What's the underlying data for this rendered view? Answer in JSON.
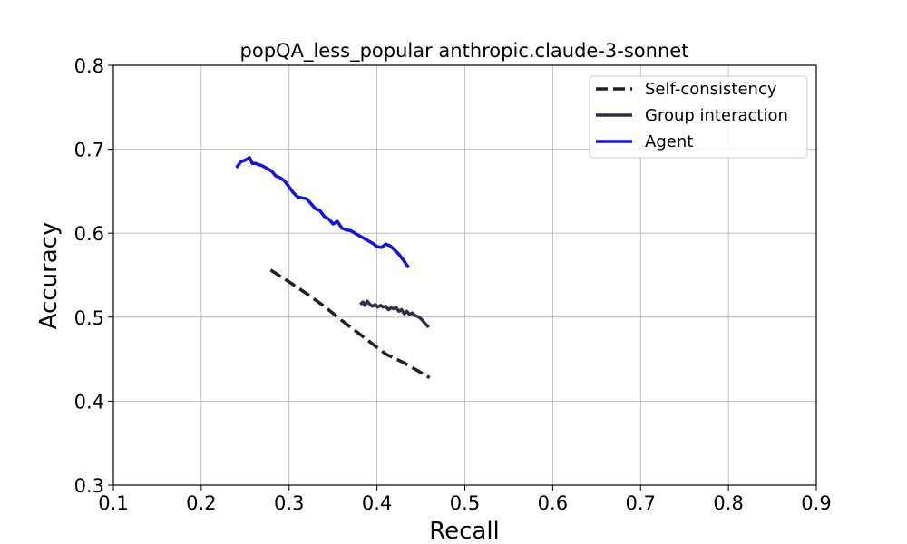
{
  "chart_data": {
    "type": "line",
    "title": "popQA_less_popular anthropic.claude-3-sonnet",
    "xlabel": "Recall",
    "ylabel": "Accuracy",
    "xlim": [
      0.1,
      0.9
    ],
    "ylim": [
      0.3,
      0.8
    ],
    "xticks": [
      0.1,
      0.2,
      0.3,
      0.4,
      0.5,
      0.6,
      0.7,
      0.8,
      0.9
    ],
    "yticks": [
      0.3,
      0.4,
      0.5,
      0.6,
      0.7,
      0.8
    ],
    "xtick_labels": [
      "0.1",
      "0.2",
      "0.3",
      "0.4",
      "0.5",
      "0.6",
      "0.7",
      "0.8",
      "0.9"
    ],
    "ytick_labels": [
      "0.3",
      "0.4",
      "0.5",
      "0.6",
      "0.7",
      "0.8"
    ],
    "grid": true,
    "legend_position": "top-right",
    "series": [
      {
        "name": "Self-consistency",
        "color": "#1f2024",
        "dash": "dashed",
        "x": [
          0.279,
          0.3,
          0.32,
          0.34,
          0.36,
          0.38,
          0.4,
          0.41,
          0.42,
          0.43,
          0.44,
          0.45,
          0.46
        ],
        "y": [
          0.556,
          0.542,
          0.528,
          0.513,
          0.496,
          0.48,
          0.464,
          0.456,
          0.451,
          0.446,
          0.44,
          0.434,
          0.428
        ]
      },
      {
        "name": "Group interaction",
        "color": "#2e3048",
        "dash": "solid",
        "x": [
          0.381,
          0.384,
          0.386,
          0.389,
          0.392,
          0.395,
          0.398,
          0.401,
          0.404,
          0.407,
          0.41,
          0.413,
          0.416,
          0.419,
          0.422,
          0.425,
          0.428,
          0.431,
          0.434,
          0.437,
          0.44,
          0.443,
          0.446,
          0.449,
          0.452,
          0.455,
          0.459
        ],
        "y": [
          0.515,
          0.518,
          0.514,
          0.519,
          0.515,
          0.513,
          0.515,
          0.512,
          0.514,
          0.512,
          0.513,
          0.509,
          0.511,
          0.51,
          0.511,
          0.507,
          0.509,
          0.504,
          0.507,
          0.503,
          0.505,
          0.502,
          0.501,
          0.499,
          0.496,
          0.492,
          0.488
        ]
      },
      {
        "name": "Agent",
        "color": "#1212e6",
        "dash": "solid",
        "x": [
          0.24,
          0.245,
          0.25,
          0.255,
          0.258,
          0.262,
          0.27,
          0.275,
          0.28,
          0.285,
          0.29,
          0.295,
          0.3,
          0.305,
          0.31,
          0.315,
          0.32,
          0.325,
          0.33,
          0.335,
          0.34,
          0.345,
          0.35,
          0.355,
          0.36,
          0.365,
          0.37,
          0.375,
          0.38,
          0.385,
          0.39,
          0.395,
          0.4,
          0.405,
          0.41,
          0.415,
          0.42,
          0.425,
          0.43,
          0.436
        ],
        "y": [
          0.678,
          0.685,
          0.687,
          0.69,
          0.683,
          0.683,
          0.68,
          0.677,
          0.674,
          0.668,
          0.666,
          0.662,
          0.655,
          0.648,
          0.643,
          0.642,
          0.641,
          0.635,
          0.629,
          0.627,
          0.62,
          0.617,
          0.611,
          0.614,
          0.606,
          0.604,
          0.603,
          0.6,
          0.597,
          0.594,
          0.591,
          0.588,
          0.584,
          0.583,
          0.587,
          0.585,
          0.58,
          0.575,
          0.568,
          0.559
        ]
      }
    ]
  }
}
